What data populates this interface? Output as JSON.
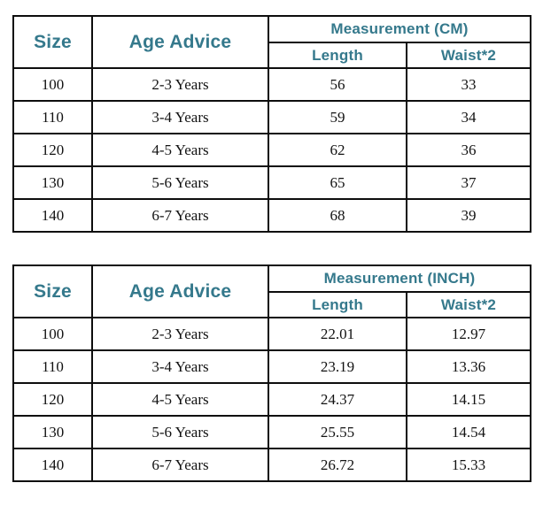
{
  "headers": {
    "size": "Size",
    "age_advice": "Age Advice",
    "length": "Length",
    "waist": "Waist*2"
  },
  "tables": [
    {
      "measurement_label": "Measurement (CM)",
      "rows": [
        {
          "size": "100",
          "age": "2-3 Years",
          "length": "56",
          "waist": "33"
        },
        {
          "size": "110",
          "age": "3-4 Years",
          "length": "59",
          "waist": "34"
        },
        {
          "size": "120",
          "age": "4-5 Years",
          "length": "62",
          "waist": "36"
        },
        {
          "size": "130",
          "age": "5-6 Years",
          "length": "65",
          "waist": "37"
        },
        {
          "size": "140",
          "age": "6-7 Years",
          "length": "68",
          "waist": "39"
        }
      ]
    },
    {
      "measurement_label": "Measurement (INCH)",
      "rows": [
        {
          "size": "100",
          "age": "2-3 Years",
          "length": "22.01",
          "waist": "12.97"
        },
        {
          "size": "110",
          "age": "3-4 Years",
          "length": "23.19",
          "waist": "13.36"
        },
        {
          "size": "120",
          "age": "4-5 Years",
          "length": "24.37",
          "waist": "14.15"
        },
        {
          "size": "130",
          "age": "5-6 Years",
          "length": "25.55",
          "waist": "14.54"
        },
        {
          "size": "140",
          "age": "6-7 Years",
          "length": "26.72",
          "waist": "15.33"
        }
      ]
    }
  ],
  "colors": {
    "header_text": "#35798c",
    "border": "#0d0d0d",
    "body_text": "#121212"
  }
}
